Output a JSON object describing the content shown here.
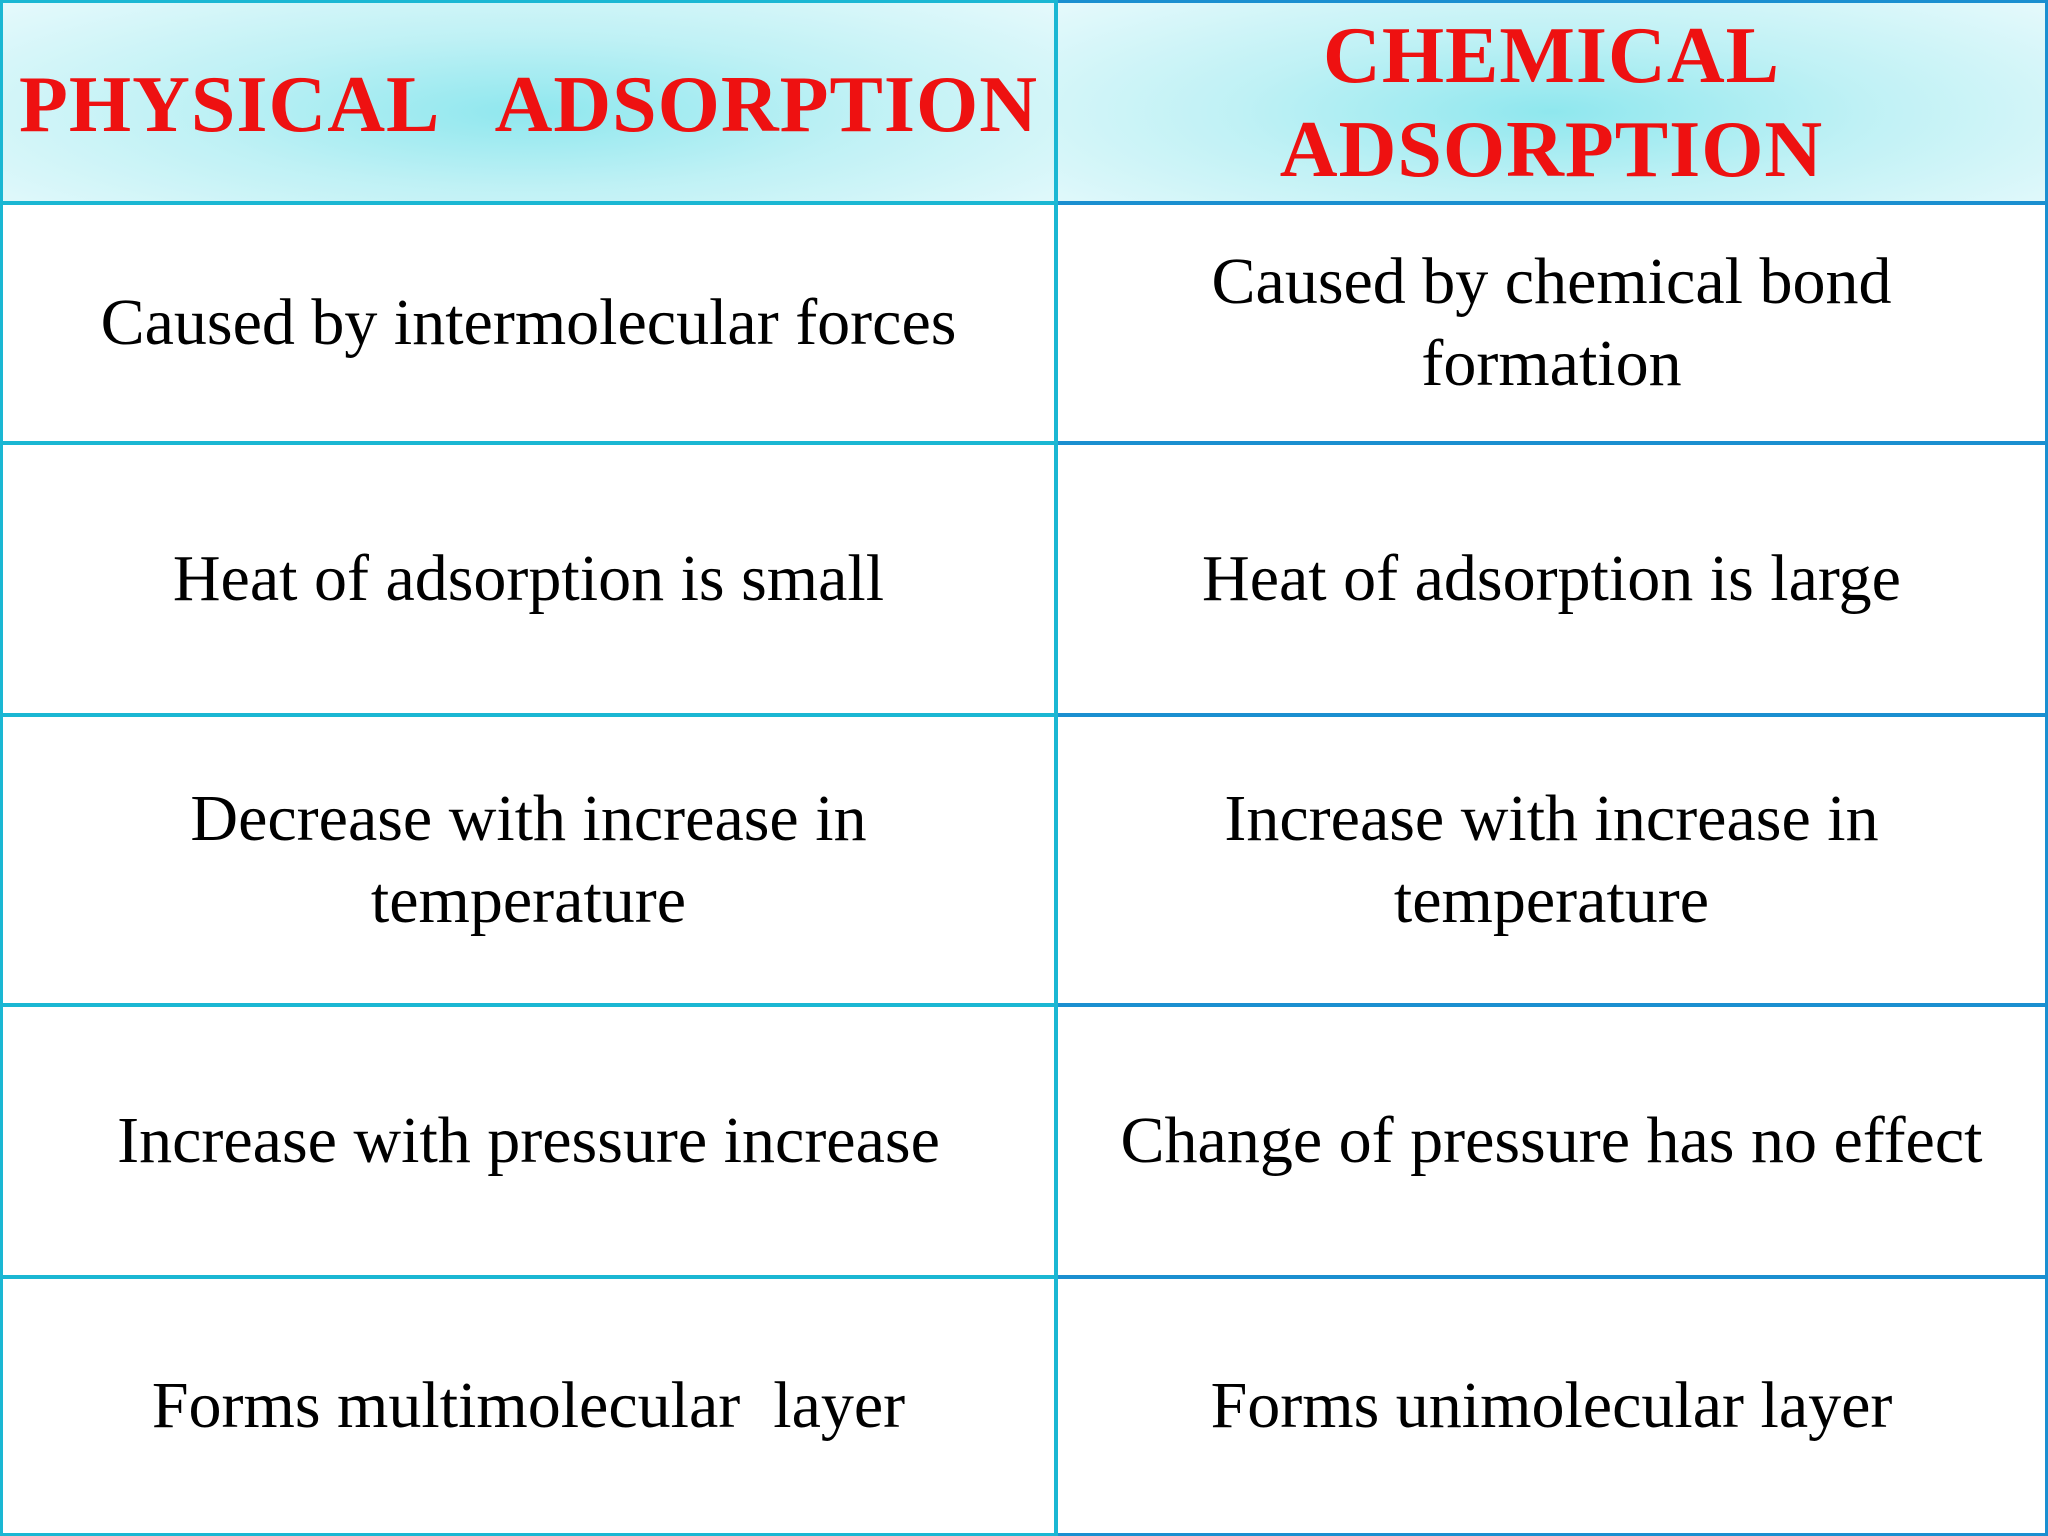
{
  "headers": {
    "physical": "PHYSICAL   ADSORPTION",
    "chemical": "CHEMICAL ADSORPTION"
  },
  "rows": [
    {
      "physical": "Caused by intermolecular forces",
      "chemical": "Caused by chemical bond formation"
    },
    {
      "physical": "Heat of adsorption is small",
      "chemical": "Heat of adsorption is large"
    },
    {
      "physical": "Decrease with increase in temperature",
      "chemical": "Increase with increase in temperature"
    },
    {
      "physical": "Increase with pressure increase",
      "chemical": "Change of pressure has no effect"
    },
    {
      "physical": "Forms multimolecular  layer",
      "chemical": "Forms unimolecular layer"
    }
  ],
  "colors": {
    "header_text": "#ee1111",
    "grid_left": "#1ab7d3",
    "grid_right": "#1a8fd0",
    "header_bg": "#8fe7ee"
  }
}
